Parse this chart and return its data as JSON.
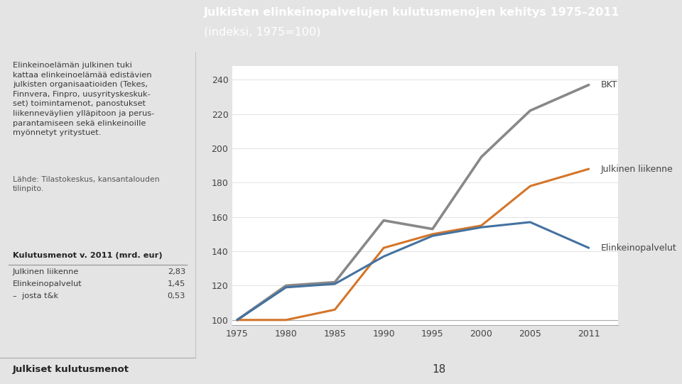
{
  "title_line1": "Julkisten elinkeinopalvelujen kulutusmenojen kehitys 1975–2011",
  "title_line2": "(indeksi, 1975=100)",
  "title_bg_color": "#E8875A",
  "title_text_color": "#ffffff",
  "chart_bg_color": "#ffffff",
  "page_bg_color": "#e4e4e4",
  "left_panel_bg": "#e4e4e4",
  "years": [
    1975,
    1980,
    1985,
    1990,
    1995,
    2000,
    2005,
    2011
  ],
  "BKT": [
    100,
    120,
    122,
    158,
    153,
    195,
    222,
    237
  ],
  "Julkinen_liikenne": [
    100,
    100,
    106,
    142,
    150,
    155,
    178,
    188
  ],
  "Elinkeinopalvelut": [
    100,
    119,
    121,
    137,
    149,
    154,
    157,
    142
  ],
  "BKT_color": "#888888",
  "Julkinen_liikenne_color": "#d4752a",
  "Elinkeinopalvelut_color": "#4472a0",
  "BKT_label": "BKT",
  "Julkinen_liikenne_label": "Julkinen liikenne",
  "Elinkeinopalvelut_label": "Elinkeinopalvelut",
  "ylim": [
    97,
    248
  ],
  "yticks": [
    100,
    120,
    140,
    160,
    180,
    200,
    220,
    240
  ],
  "xticks": [
    1975,
    1980,
    1985,
    1990,
    1995,
    2000,
    2005,
    2011
  ],
  "left_text_body": "Elinkeinoelämän julkinen tuki\nkattaa elinkeinoelämää edistävien\njulkisten organisaatioiden (Tekes,\nFinnvera, Finpro, uusyrityskeskuk-\nset) toimintamenot, panostukset\nliikenneväylien ylläpitoon ja perus-\nparantamiseen sekä elinkeinoille\nmyönnetyt yritystuet.",
  "left_source": "Lähde: Tilastokeskus, kansantalouden\ntilinpito.",
  "table_title": "Kulutusmenot v. 2011 (mrd. eur)",
  "table_rows": [
    [
      "Julkinen liikenne",
      "2,83"
    ],
    [
      "Elinkeinopalvelut",
      "1,45"
    ],
    [
      "–  josta t&k",
      "0,53"
    ]
  ],
  "bottom_left": "Julkiset kulutusmenot",
  "bottom_right": "18",
  "line_width": 2.2
}
